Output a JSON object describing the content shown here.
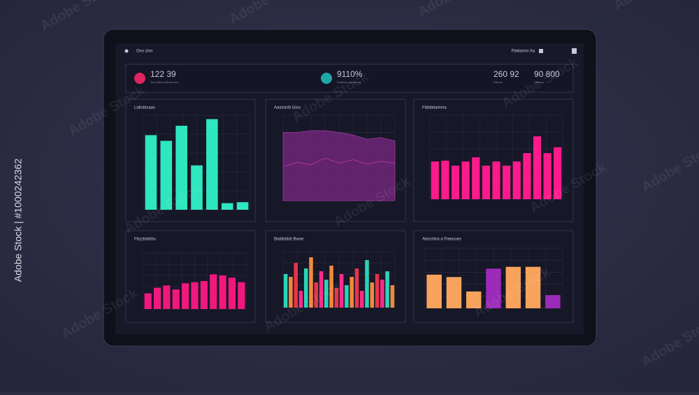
{
  "header": {
    "breadcrumb": "Ovo zlvo",
    "menu": "Fbidasno Aa"
  },
  "kpis": [
    {
      "value": "122 39",
      "label": "Sruu Wlho ebhub ocuo",
      "color": "#e0245e"
    },
    {
      "value": "9110%",
      "label": "Fbsbcbo ebsnnnoa",
      "color": "#1fa7a8"
    },
    {
      "value": "260 92",
      "label": "Fbbcco"
    },
    {
      "value": "90 800",
      "label": "Cbbcoo"
    }
  ],
  "panels": [
    {
      "title": "Lidinbisaas",
      "type": "bar",
      "ylim": [
        0,
        100
      ],
      "colors": [
        "#2ee6c0"
      ],
      "values": [
        79,
        73,
        89,
        47,
        96,
        7,
        8
      ]
    },
    {
      "title": "Aasicinitt Giso",
      "type": "area",
      "ylim": [
        0,
        100
      ],
      "series": [
        {
          "color": "#6e2678",
          "values": [
            80,
            80,
            82,
            82,
            80,
            77,
            72,
            74,
            70
          ]
        },
        {
          "color": "#b0349e",
          "values": [
            40,
            45,
            42,
            50,
            44,
            48,
            43,
            46,
            44
          ]
        }
      ]
    },
    {
      "title": "Fbibbitamma",
      "type": "bar",
      "ylim": [
        0,
        100
      ],
      "colors": [
        "#ff1a8c"
      ],
      "values": [
        45,
        46,
        40,
        45,
        50,
        40,
        45,
        40,
        45,
        55,
        75,
        55,
        62
      ]
    },
    {
      "title": "Fbzzbiahbu",
      "type": "bar",
      "ylim": [
        0,
        100
      ],
      "colors": [
        "#f0187e"
      ],
      "values": [
        28,
        38,
        42,
        35,
        46,
        48,
        50,
        62,
        60,
        56,
        48
      ]
    },
    {
      "title": "Biabbt&itt Bwoe",
      "type": "bar",
      "ylim": [
        0,
        100
      ],
      "colors": [
        "#2ad4b8",
        "#f08a3c",
        "#e8344a",
        "#ff2a8a"
      ],
      "values": [
        60,
        55,
        80,
        30,
        70,
        90,
        45,
        65,
        50,
        75,
        35,
        60,
        40,
        55,
        70,
        30,
        85,
        45,
        60,
        50,
        65,
        40
      ]
    },
    {
      "title": "Aiecchira a Fiaeuues",
      "type": "bar",
      "ylim": [
        0,
        100
      ],
      "colors": [
        "#f7a35c",
        "#f7a35c",
        "#f7a35c",
        "#9b2bb8",
        "#f7a35c",
        "#f7a35c",
        "#9b2bb8"
      ],
      "values": [
        56,
        52,
        28,
        66,
        69,
        69,
        22
      ]
    }
  ],
  "watermark": "Adobe Stock",
  "side_label": "Adobe Stock | #1000242362"
}
